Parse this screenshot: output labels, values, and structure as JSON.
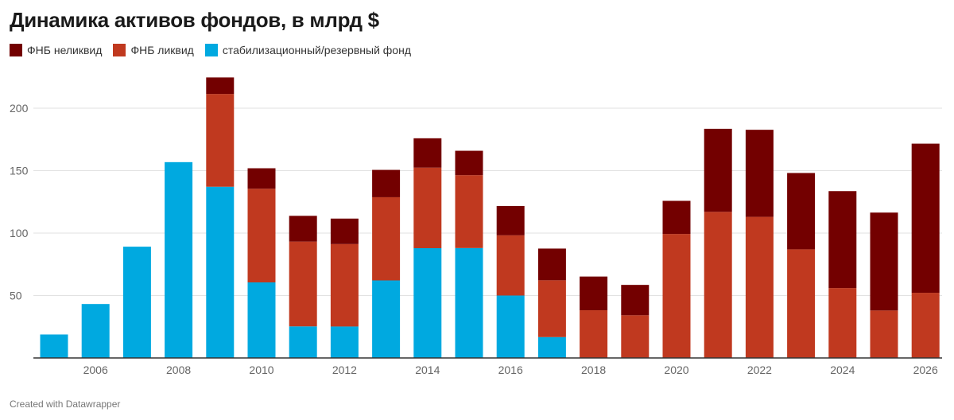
{
  "chart_data": {
    "type": "bar",
    "stacked": true,
    "title": "Динамика активов фондов, в млрд $",
    "xlabel": "",
    "ylabel": "",
    "ylim": [
      0,
      225
    ],
    "yticks": [
      50,
      100,
      150,
      200
    ],
    "xticks": [
      "2006",
      "2008",
      "2010",
      "2012",
      "2014",
      "2016",
      "2018",
      "2020",
      "2022",
      "2024",
      "2026"
    ],
    "categories": [
      "2005",
      "2006",
      "2007",
      "2008",
      "2009",
      "2010",
      "2011",
      "2012",
      "2013",
      "2014",
      "2015",
      "2016",
      "2017",
      "2018",
      "2019",
      "2020",
      "2021",
      "2022",
      "2023",
      "2024",
      "2025",
      "2026"
    ],
    "series": [
      {
        "name": "стабилизационный/резервный фонд",
        "color": "#00a9e0",
        "values": [
          18.8,
          43.2,
          89.1,
          156.8,
          137.1,
          60.5,
          25.3,
          25.2,
          62.1,
          87.9,
          88.0,
          50.0,
          16.7,
          0,
          0,
          0,
          0,
          0,
          0,
          0,
          0,
          0
        ]
      },
      {
        "name": "ФНБ ликвид",
        "color": "#c0391f",
        "values": [
          0,
          0,
          0,
          0,
          74.3,
          75.0,
          67.9,
          66.0,
          66.6,
          64.5,
          58.4,
          48.2,
          45.5,
          38.2,
          34.2,
          99.3,
          117.0,
          113.0,
          87.0,
          56.0,
          38.0,
          52.2
        ]
      },
      {
        "name": "ФНБ неликвид",
        "color": "#730000",
        "values": [
          0,
          0,
          0,
          0,
          13.2,
          16.4,
          20.6,
          20.4,
          21.9,
          23.5,
          19.5,
          23.5,
          25.4,
          27.0,
          24.3,
          26.5,
          66.5,
          69.7,
          61.1,
          77.6,
          78.4,
          119.4
        ]
      }
    ],
    "legend": [
      "ФНБ неликвид",
      "ФНБ ликвид",
      "стабилизационный/резервный фонд"
    ]
  },
  "legend_items": [
    {
      "label": "ФНБ неликвид",
      "color": "#730000"
    },
    {
      "label": "ФНБ ликвид",
      "color": "#c0391f"
    },
    {
      "label": "стабилизационный/резервный фонд",
      "color": "#00a9e0"
    }
  ],
  "footer": "Created with Datawrapper"
}
